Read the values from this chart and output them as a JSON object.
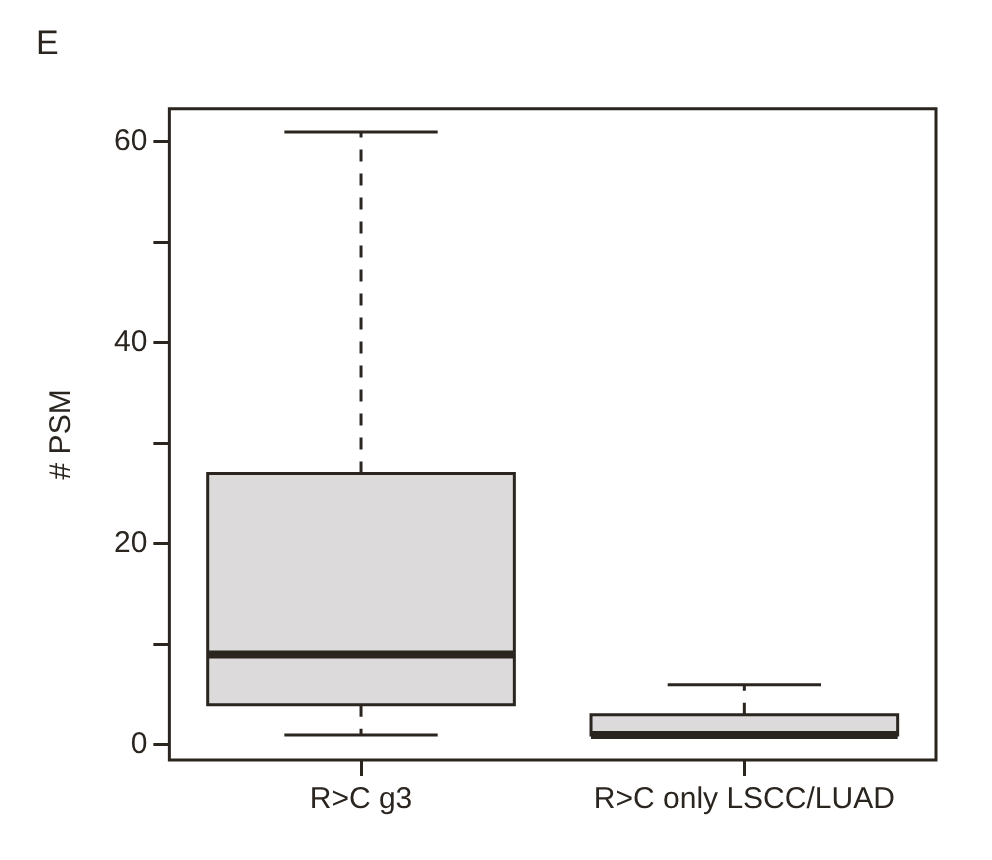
{
  "chart_data": {
    "type": "box",
    "title": "E",
    "ylabel": "# PSM",
    "categories": [
      "R>C g3",
      "R>C only LSCC/LUAD"
    ],
    "boxes": [
      {
        "low": 1,
        "q1": 4,
        "median": 9,
        "q3": 27,
        "high": 61
      },
      {
        "low": 1,
        "q1": 1,
        "median": 1,
        "q3": 3,
        "high": 6
      }
    ],
    "color": "#dcdadb",
    "ylim": [
      -1.5,
      63.3
    ],
    "yticks": [
      0,
      {
        "value": 10,
        "label": null
      },
      20,
      {
        "value": 30,
        "label": null
      },
      40,
      {
        "value": 50,
        "label": null
      },
      60
    ],
    "grid": false,
    "legend": false
  }
}
